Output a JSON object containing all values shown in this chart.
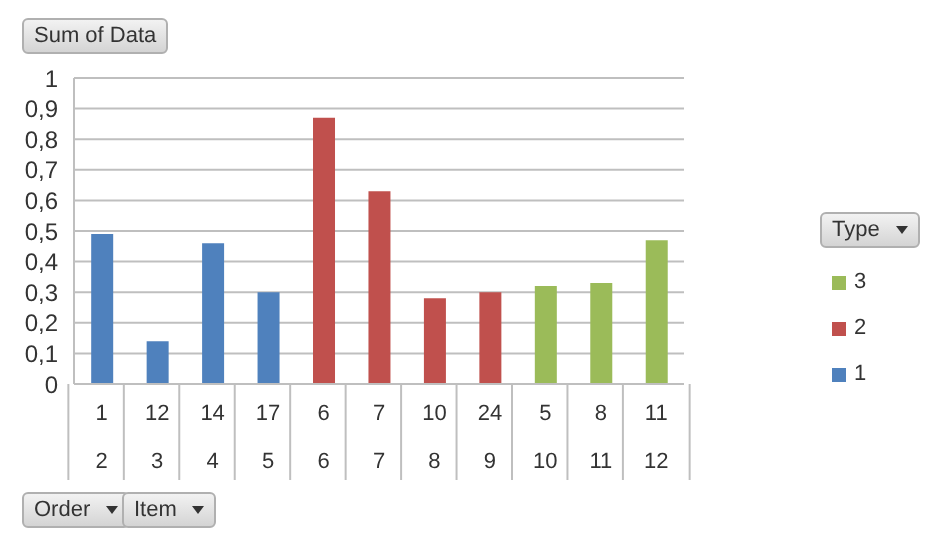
{
  "chart_data": {
    "type": "bar",
    "ylabel": "Sum of Data",
    "legend_title": "Type",
    "annotations": [
      "Order",
      "Item"
    ],
    "categories": [
      "1\n2",
      "12\n3",
      "14\n4",
      "17\n5",
      "6\n6",
      "7\n7",
      "10\n8",
      "24\n9",
      "5\n10",
      "8\n11",
      "11\n12"
    ],
    "series": [
      {
        "name": "1",
        "color": "#4f81bd",
        "values": [
          0.49,
          0.14,
          0.46,
          0.3,
          null,
          null,
          null,
          null,
          null,
          null,
          null
        ]
      },
      {
        "name": "2",
        "color": "#c0504d",
        "values": [
          null,
          null,
          null,
          null,
          0.87,
          0.63,
          0.28,
          0.3,
          null,
          null,
          null
        ]
      },
      {
        "name": "3",
        "color": "#9bbb59",
        "values": [
          null,
          null,
          null,
          null,
          null,
          null,
          null,
          null,
          0.32,
          0.33,
          0.47
        ]
      }
    ],
    "stacked": true,
    "ylim": [
      0,
      1
    ],
    "yticks": [
      0,
      {
        "value": 0.1,
        "label": "0,1"
      },
      {
        "value": 0.2,
        "label": "0,2"
      },
      {
        "value": 0.3,
        "label": "0,3"
      },
      {
        "value": 0.4,
        "label": "0,4"
      },
      {
        "value": 0.5,
        "label": "0,5"
      },
      {
        "value": 0.6,
        "label": "0,6"
      },
      {
        "value": 0.7,
        "label": "0,7"
      },
      {
        "value": 0.8,
        "label": "0,8"
      },
      {
        "value": 0.9,
        "label": "0,9"
      },
      1
    ],
    "grid": "y",
    "legend": "right"
  }
}
